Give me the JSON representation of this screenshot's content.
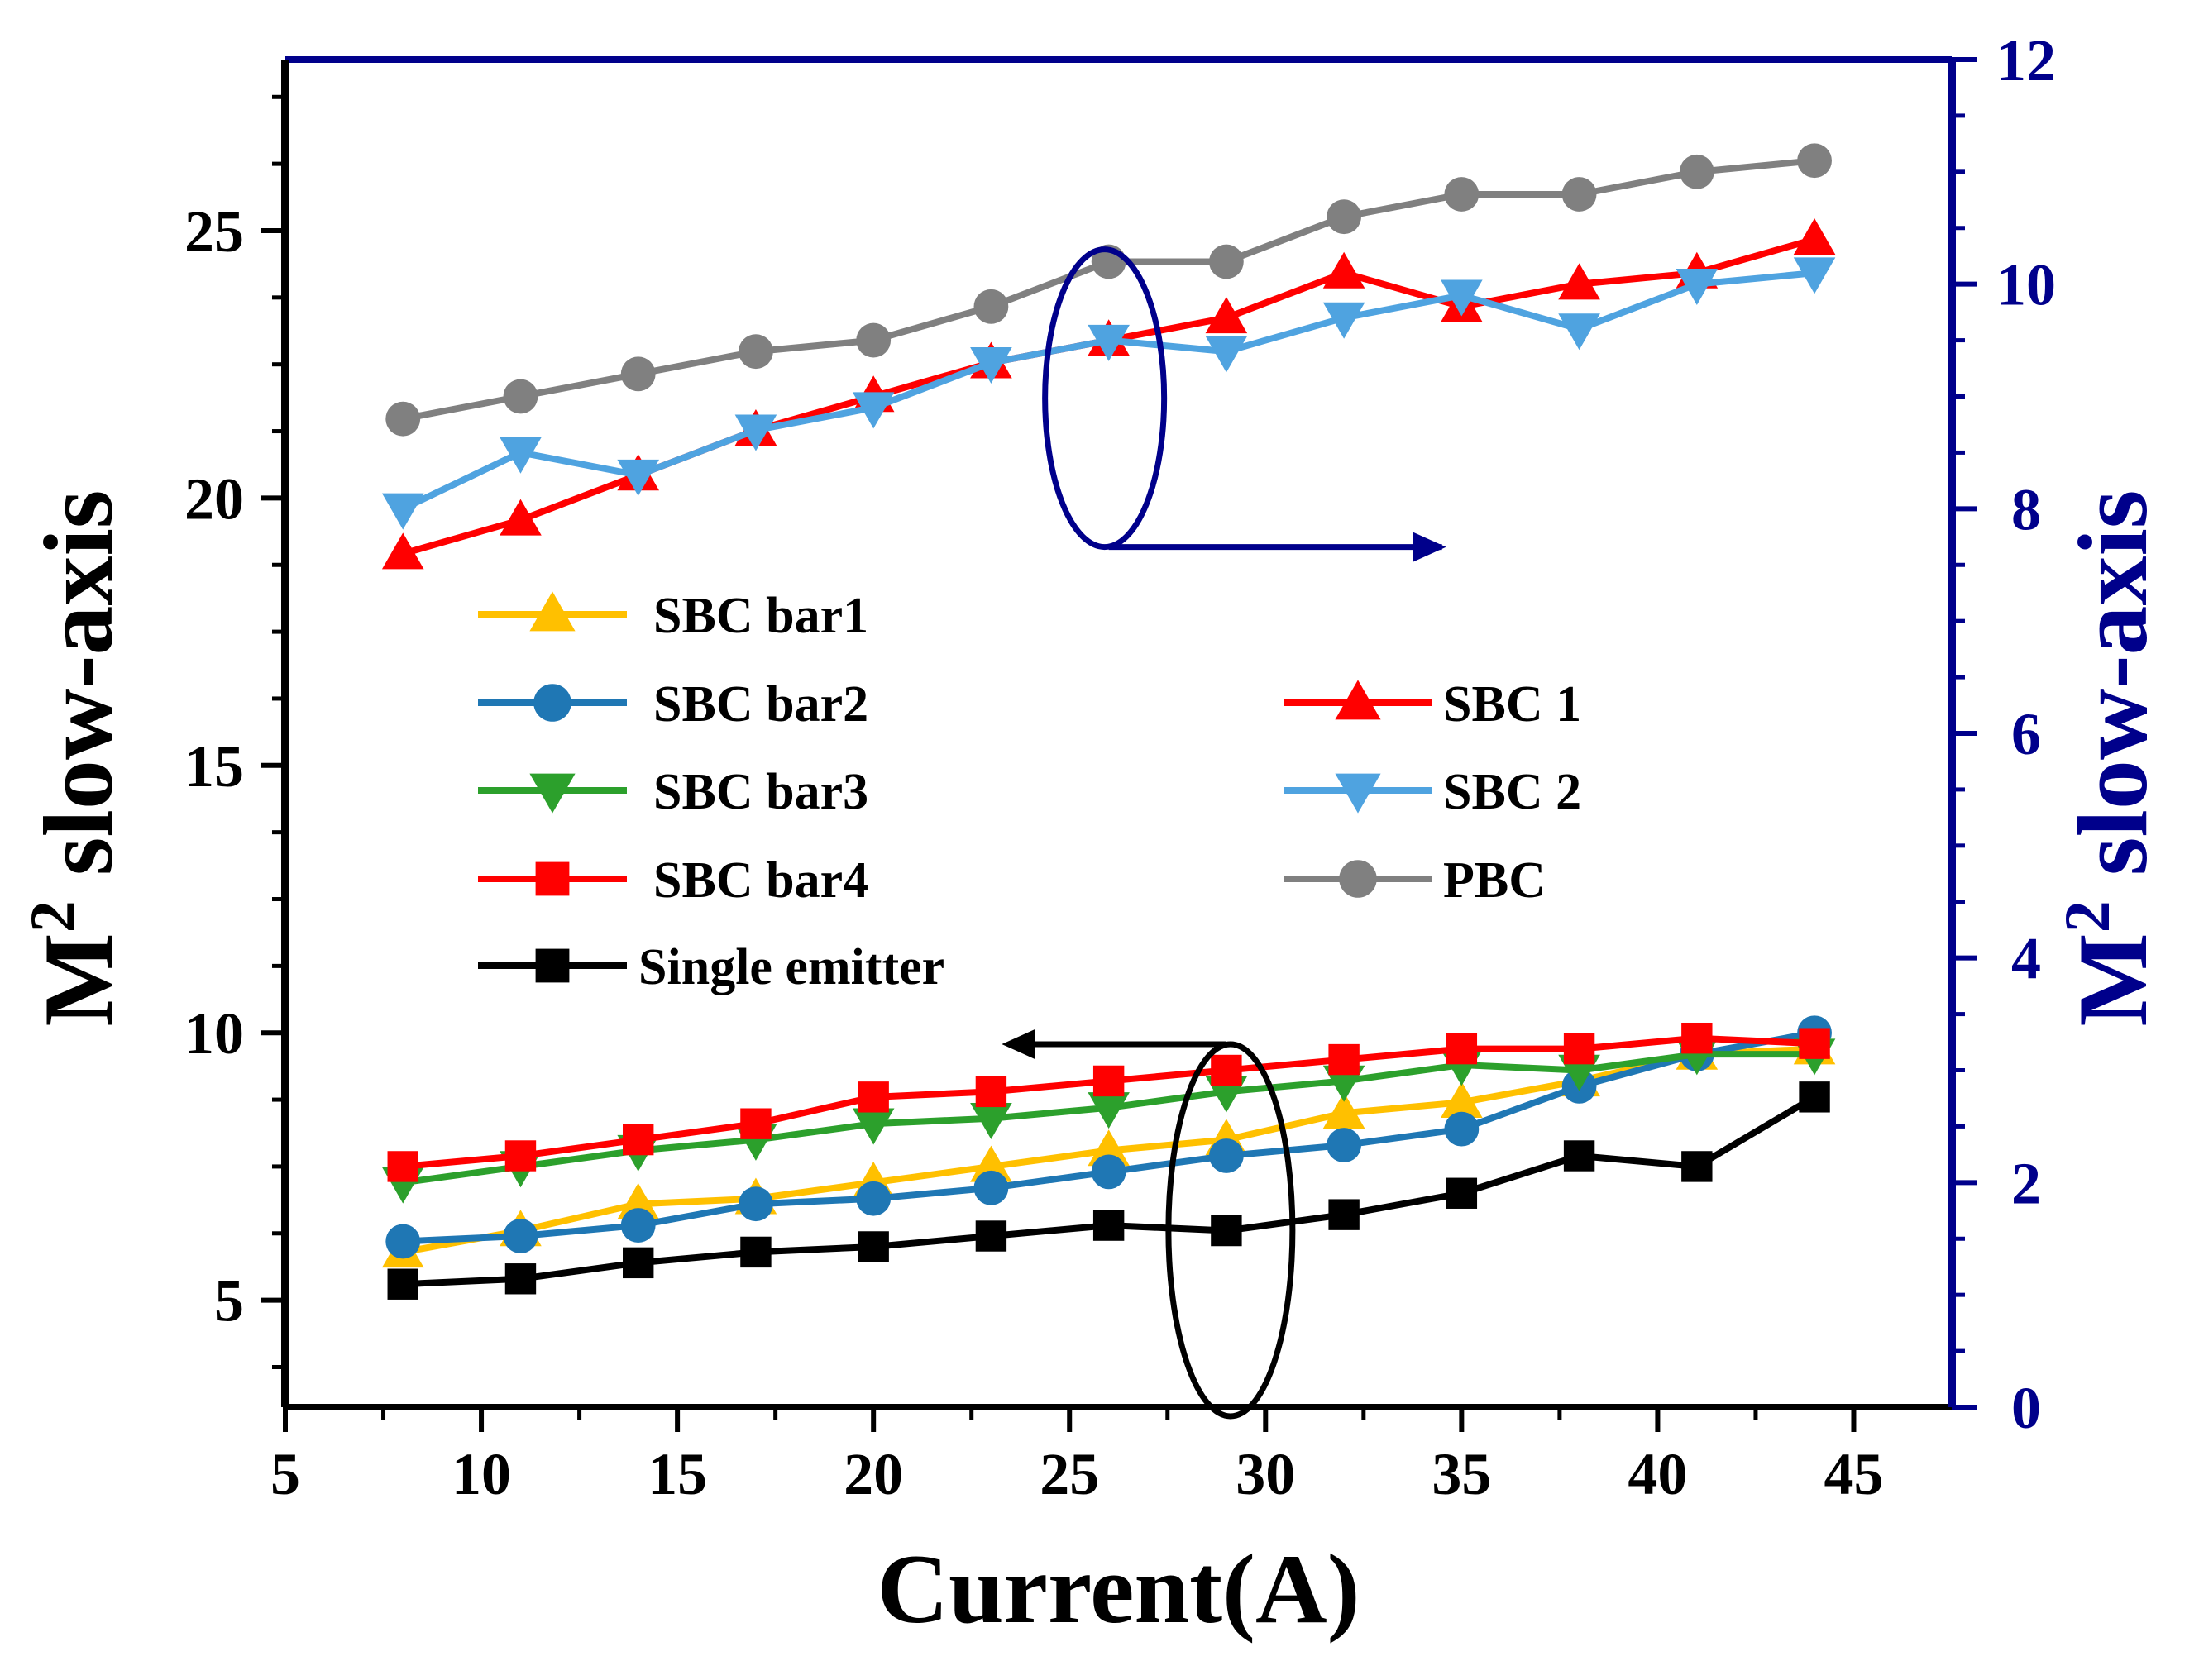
{
  "chart_data": {
    "type": "line",
    "title": "",
    "xlabel": "Current(A)",
    "ylabel_left": {
      "prefix": "M",
      "sup": "2",
      "suffix": " slow-axis"
    },
    "ylabel_right": {
      "prefix": "M",
      "sup": "2",
      "suffix": " slow-axis"
    },
    "xlim": [
      5,
      47.5
    ],
    "ylim_left": [
      3,
      28.2
    ],
    "ylim_right": [
      0,
      12
    ],
    "x_ticks": [
      5,
      10,
      15,
      20,
      25,
      30,
      35,
      40,
      45
    ],
    "y_left_ticks": [
      5,
      10,
      15,
      20,
      25
    ],
    "y_right_ticks": [
      0,
      2,
      4,
      6,
      8,
      10,
      12
    ],
    "x": [
      8,
      11,
      14,
      17,
      20,
      23,
      26,
      29,
      32,
      35,
      38,
      41,
      44
    ],
    "series": [
      {
        "name": "SBC bar1",
        "axis": "left",
        "color": "#ffc000",
        "marker": "triangle-up",
        "values": [
          5.9,
          6.3,
          6.8,
          6.9,
          7.2,
          7.5,
          7.8,
          8.0,
          8.5,
          8.7,
          9.1,
          9.6,
          9.7
        ]
      },
      {
        "name": "SBC bar2",
        "axis": "left",
        "color": "#1f77b4",
        "marker": "circle",
        "values": [
          6.1,
          6.2,
          6.4,
          6.8,
          6.9,
          7.1,
          7.4,
          7.7,
          7.9,
          8.2,
          9.0,
          9.6,
          10.0
        ]
      },
      {
        "name": "SBC bar3",
        "axis": "left",
        "color": "#2ca02c",
        "marker": "triangle-down",
        "values": [
          7.2,
          7.5,
          7.8,
          8.0,
          8.3,
          8.4,
          8.6,
          8.9,
          9.1,
          9.4,
          9.3,
          9.6,
          9.6
        ]
      },
      {
        "name": "SBC bar4",
        "axis": "left",
        "color": "#ff0000",
        "marker": "square",
        "values": [
          7.5,
          7.7,
          8.0,
          8.3,
          8.8,
          8.9,
          9.1,
          9.3,
          9.5,
          9.7,
          9.7,
          9.9,
          9.8
        ]
      },
      {
        "name": "Single emitter",
        "axis": "left",
        "color": "#000000",
        "marker": "square",
        "values": [
          5.3,
          5.4,
          5.7,
          5.9,
          6.0,
          6.2,
          6.4,
          6.3,
          6.6,
          7.0,
          7.7,
          7.5,
          8.8
        ]
      },
      {
        "name": "SBC 1",
        "axis": "right",
        "color": "#ff0000",
        "marker": "triangle-up",
        "values": [
          7.6,
          7.9,
          8.3,
          8.7,
          9.0,
          9.3,
          9.5,
          9.7,
          10.1,
          9.8,
          10.0,
          10.1,
          10.4
        ]
      },
      {
        "name": "SBC 2",
        "axis": "right",
        "color": "#4fa3e0",
        "marker": "triangle-down",
        "values": [
          8.0,
          8.5,
          8.3,
          8.7,
          8.9,
          9.3,
          9.5,
          9.4,
          9.7,
          9.9,
          9.6,
          10.0,
          10.1
        ]
      },
      {
        "name": "PBC",
        "axis": "right",
        "color": "#808080",
        "marker": "circle",
        "values": [
          8.8,
          9.0,
          9.2,
          9.4,
          9.5,
          9.8,
          10.2,
          10.2,
          10.6,
          10.8,
          10.8,
          11.0,
          11.1
        ]
      }
    ],
    "legend": {
      "left_column": [
        "SBC bar1",
        "SBC bar2",
        "SBC bar3",
        "SBC bar4",
        "Single emitter"
      ],
      "right_column": [
        "SBC 1",
        "SBC 2",
        "PBC"
      ]
    },
    "annotations": [
      {
        "name": "right-axis-indicator",
        "text": "",
        "ellipse_at_x": 26,
        "ellipse_center_right": 9.5,
        "arrow": "right",
        "color": "#00008b"
      },
      {
        "name": "left-axis-indicator",
        "text": "",
        "ellipse_at_x": 29,
        "ellipse_center_left": 6.0,
        "arrow": "left",
        "color": "#000000"
      }
    ],
    "colors": {
      "left_axis": "#000000",
      "right_axis": "#00008b",
      "top_border": "#00008b"
    }
  }
}
